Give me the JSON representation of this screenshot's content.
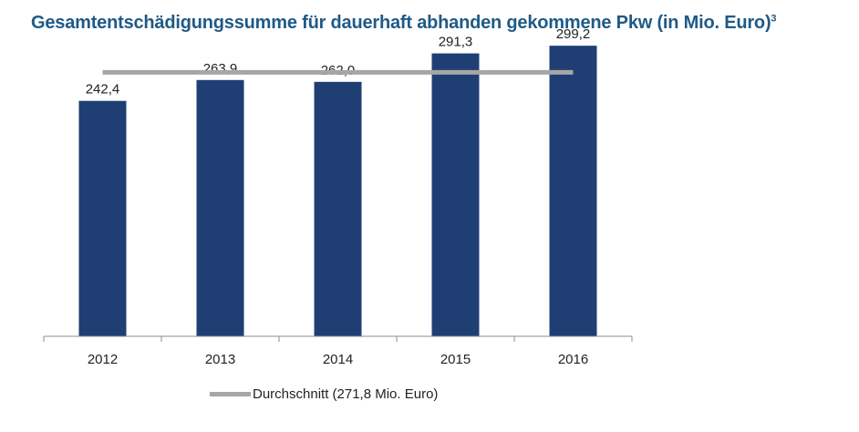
{
  "title": "Gesamtentschädigungssumme für dauerhaft abhanden gekommene Pkw (in Mio. Euro)",
  "title_sup": "3",
  "colors": {
    "title": "#1f5a86",
    "bar": "#1f3f74",
    "average_line": "#a6a6a6",
    "axis": "#8c8c8c"
  },
  "chart_data": {
    "type": "bar",
    "title": "Gesamtentschädigungssumme für dauerhaft abhanden gekommene Pkw (in Mio. Euro)",
    "categories": [
      "2012",
      "2013",
      "2014",
      "2015",
      "2016"
    ],
    "value_labels": [
      "242,4",
      "263,9",
      "262,0",
      "291,3",
      "299,2"
    ],
    "series": [
      {
        "values": [
          242.4,
          263.9,
          262.0,
          291.3,
          299.2
        ],
        "type": "bar"
      },
      {
        "name": "Durchschnitt (271,8 Mio. Euro)",
        "values": [
          271.8,
          271.8,
          271.8,
          271.8,
          271.8
        ],
        "type": "line"
      }
    ],
    "ylim": [
      0,
      320
    ],
    "grid": false,
    "legend": "bottom"
  },
  "legend": {
    "label": "Durchschnitt (271,8 Mio. Euro)"
  }
}
